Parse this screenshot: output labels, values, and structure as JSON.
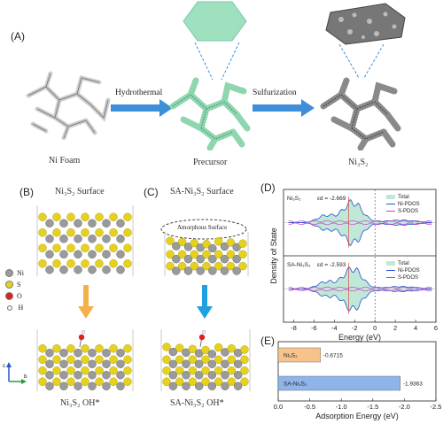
{
  "panel_labels": {
    "a": "(A)",
    "b": "(B)",
    "c": "(C)",
    "d": "(D)",
    "e": "(E)"
  },
  "top_row": {
    "ni_foam": "Ni Foam",
    "precursor": "Precursor",
    "product": "Ni₃S₂",
    "step1": "Hydrothermal",
    "step2": "Sulfurization"
  },
  "panel_b": {
    "title": "Ni₃S₂ Surface",
    "caption": "Ni₃S₂ OH*"
  },
  "panel_c": {
    "title": "SA-Ni₃S₂ Surface",
    "caption": "SA-Ni₃S₂ OH*",
    "amorphous": "Amorphous Surface"
  },
  "atom_legend": [
    {
      "symbol": "Ni",
      "color": "#9a9a9a"
    },
    {
      "symbol": "S",
      "color": "#e6d21e"
    },
    {
      "symbol": "O",
      "color": "#e02020"
    },
    {
      "symbol": "H",
      "color": "#f0f0f0"
    }
  ],
  "axes_labels": {
    "c": "c",
    "b": "b"
  },
  "chart_data": [
    {
      "type": "line",
      "panel": "D",
      "xlabel": "Energy (eV)",
      "ylabel": "Density of State",
      "xlim": [
        -9,
        6
      ],
      "x_ticks": [
        "-8",
        "-6",
        "-4",
        "-2",
        "0",
        "2",
        "4",
        "6"
      ],
      "subplots": [
        {
          "label": "Ni₃S₂",
          "eps": "εd = -2.669",
          "series": [
            {
              "name": "Total",
              "color": "#bfe8d6"
            },
            {
              "name": "Ni-PDOS",
              "color": "#2b4fd8"
            },
            {
              "name": "S-PDOS",
              "color": "#d040c8"
            }
          ]
        },
        {
          "label": "SA-Ni₃S₂",
          "eps": "εd = -2.593",
          "series": [
            {
              "name": "Total",
              "color": "#bfe8d6"
            },
            {
              "name": "Ni-PDOS",
              "color": "#2b4fd8"
            },
            {
              "name": "S-PDOS",
              "color": "#d040c8"
            }
          ]
        }
      ]
    },
    {
      "type": "bar",
      "panel": "E",
      "xlabel": "Adsorption Energy (eV)",
      "categories": [
        "Ni₃S₂",
        "SA-Ni₃S₂"
      ],
      "values": [
        -0.6715,
        -1.9363
      ],
      "value_labels": [
        "-0.6715",
        "-1.9363"
      ],
      "colors": [
        "#f6c48a",
        "#8fb4ea"
      ],
      "xlim": [
        0,
        -2.5
      ],
      "x_ticks": [
        "0.0",
        "-0.5",
        "-1.0",
        "-1.5",
        "-2.0",
        "-2.5"
      ]
    }
  ]
}
